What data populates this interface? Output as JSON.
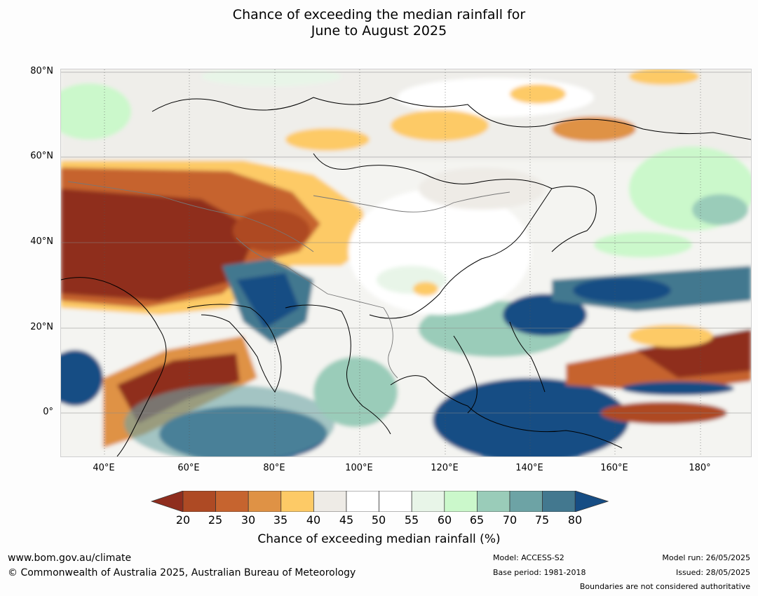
{
  "title": {
    "line1": "Chance of exceeding the median rainfall for",
    "line2": "June to August 2025"
  },
  "map": {
    "lat_labels": [
      "80°N",
      "60°N",
      "40°N",
      "20°N",
      "0°"
    ],
    "lon_labels": [
      "40°E",
      "60°E",
      "80°E",
      "100°E",
      "120°E",
      "140°E",
      "160°E",
      "180°"
    ],
    "extent": {
      "lon_min": 30,
      "lon_max": 192,
      "lat_min": -10,
      "lat_max": 81
    }
  },
  "colorbar": {
    "ticks": [
      "20",
      "25",
      "30",
      "35",
      "40",
      "45",
      "50",
      "55",
      "60",
      "65",
      "70",
      "75",
      "80"
    ],
    "colors": [
      "#8f2d1e",
      "#ae4a24",
      "#c6642f",
      "#df9245",
      "#fdca66",
      "#eeebe6",
      "#ffffff",
      "#ffffff",
      "#e8f5e8",
      "#cbf8cb",
      "#9accb9",
      "#6da3a5",
      "#43788f",
      "#164d84"
    ],
    "label": "Chance of exceeding median rainfall (%)"
  },
  "footer": {
    "website": "www.bom.gov.au/climate",
    "copyright": "© Commonwealth of Australia 2025, Australian Bureau of Meteorology",
    "model": "Model: ACCESS-S2",
    "base_period": "Base period: 1981-2018",
    "model_run": "Model run: 26/05/2025",
    "issued": "Issued: 28/05/2025",
    "boundaries": "Boundaries are not considered authoritative"
  }
}
